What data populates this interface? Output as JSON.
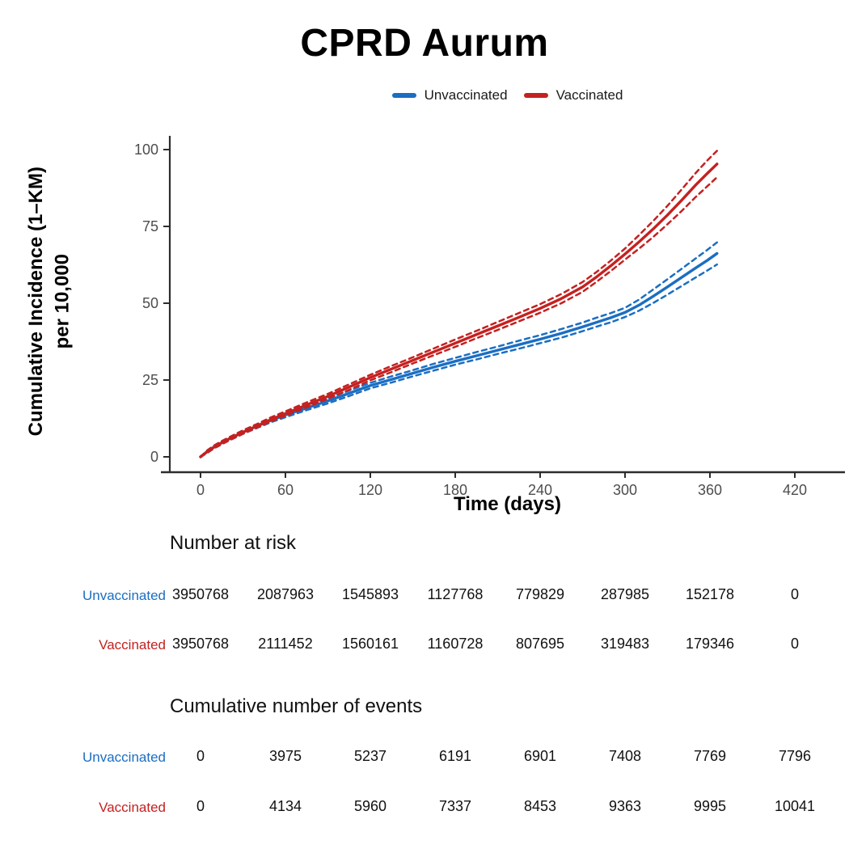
{
  "title": "CPRD Aurum",
  "legend": {
    "items": [
      {
        "label": "Unvaccinated",
        "color": "#1b6ec2"
      },
      {
        "label": "Vaccinated",
        "color": "#c42120"
      }
    ]
  },
  "axis": {
    "x_label": "Time (days)",
    "y_label_line1": "Cumulative Incidence (1–KM)",
    "y_label_line2": "per 10,000",
    "x_ticks": [
      0,
      60,
      120,
      180,
      240,
      300,
      360,
      420
    ],
    "y_ticks": [
      0,
      25,
      50,
      75,
      100
    ],
    "tick_color": "#4d4d4d",
    "axis_color": "#2d2d2d"
  },
  "chart_data": {
    "type": "line",
    "title": "CPRD Aurum",
    "xlabel": "Time (days)",
    "ylabel": "Cumulative Incidence (1–KM) per 10,000",
    "xlim": [
      0,
      440
    ],
    "ylim": [
      0,
      100
    ],
    "grid": false,
    "legend_position": "top",
    "x": [
      0,
      5,
      10,
      15,
      20,
      30,
      40,
      50,
      60,
      75,
      90,
      105,
      120,
      135,
      150,
      165,
      180,
      195,
      210,
      225,
      240,
      255,
      270,
      280,
      290,
      300,
      310,
      320,
      330,
      340,
      350,
      358,
      365
    ],
    "series": [
      {
        "name": "Unvaccinated",
        "color": "#1b6ec2",
        "values": [
          0,
          1.8,
          3.3,
          4.6,
          5.8,
          8.0,
          10.0,
          11.9,
          13.6,
          15.9,
          18.2,
          20.7,
          23.2,
          25.2,
          27.2,
          29.2,
          31.1,
          32.9,
          34.7,
          36.5,
          38.3,
          40.2,
          42.3,
          43.8,
          45.3,
          47.0,
          49.4,
          52.3,
          55.3,
          58.4,
          61.5,
          63.9,
          66.2
        ],
        "ci_upper": [
          0,
          2.2,
          3.8,
          5.1,
          6.3,
          8.6,
          10.6,
          12.6,
          14.3,
          16.7,
          19.0,
          21.6,
          24.1,
          26.2,
          28.2,
          30.3,
          32.2,
          34.1,
          35.9,
          37.8,
          39.6,
          41.6,
          43.7,
          45.3,
          46.8,
          48.5,
          51.2,
          54.5,
          57.8,
          61.2,
          64.6,
          67.3,
          69.8
        ],
        "ci_lower": [
          0,
          1.4,
          2.9,
          4.1,
          5.3,
          7.5,
          9.4,
          11.3,
          12.9,
          15.2,
          17.4,
          19.8,
          22.3,
          24.2,
          26.2,
          28.1,
          30.0,
          31.7,
          33.5,
          35.2,
          37.0,
          38.8,
          40.9,
          42.4,
          43.8,
          45.5,
          47.6,
          50.1,
          52.8,
          55.6,
          58.4,
          60.6,
          62.6
        ]
      },
      {
        "name": "Vaccinated",
        "color": "#c42120",
        "values": [
          0,
          1.8,
          3.3,
          4.6,
          5.8,
          8.0,
          10.1,
          12.2,
          14.1,
          16.9,
          19.7,
          22.7,
          25.8,
          28.6,
          31.4,
          34.2,
          37.0,
          39.8,
          42.6,
          45.4,
          48.3,
          51.5,
          55.3,
          58.6,
          62.2,
          66.0,
          70.0,
          74.2,
          78.7,
          83.5,
          88.5,
          92.2,
          95.3
        ],
        "ci_upper": [
          0,
          2.2,
          3.8,
          5.1,
          6.3,
          8.6,
          10.7,
          12.9,
          14.8,
          17.7,
          20.5,
          23.6,
          26.7,
          29.6,
          32.4,
          35.3,
          38.2,
          41.0,
          43.9,
          46.8,
          49.7,
          53.0,
          56.9,
          60.2,
          63.9,
          67.8,
          72.2,
          76.8,
          81.7,
          87.0,
          92.4,
          96.4,
          99.6
        ],
        "ci_lower": [
          0,
          1.4,
          2.9,
          4.1,
          5.3,
          7.5,
          9.5,
          11.6,
          13.4,
          16.1,
          18.9,
          21.8,
          24.9,
          27.6,
          30.4,
          33.1,
          35.8,
          38.6,
          41.3,
          44.1,
          46.9,
          50.0,
          53.7,
          57.0,
          60.5,
          64.2,
          67.8,
          71.6,
          75.7,
          80.0,
          84.6,
          88.0,
          91.0
        ]
      }
    ]
  },
  "tables": {
    "time_points": [
      0,
      60,
      120,
      180,
      240,
      300,
      360,
      420
    ],
    "number_at_risk": {
      "heading": "Number at risk",
      "rows": [
        {
          "label": "Unvaccinated",
          "color": "#1b6ec2",
          "values": [
            "3950768",
            "2087963",
            "1545893",
            "1127768",
            "779829",
            "287985",
            "152178",
            "0"
          ]
        },
        {
          "label": "Vaccinated",
          "color": "#c42120",
          "values": [
            "3950768",
            "2111452",
            "1560161",
            "1160728",
            "807695",
            "319483",
            "179346",
            "0"
          ]
        }
      ]
    },
    "cumulative_events": {
      "heading": "Cumulative number of events",
      "rows": [
        {
          "label": "Unvaccinated",
          "color": "#1b6ec2",
          "values": [
            "0",
            "3975",
            "5237",
            "6191",
            "6901",
            "7408",
            "7769",
            "7796"
          ]
        },
        {
          "label": "Vaccinated",
          "color": "#c42120",
          "values": [
            "0",
            "4134",
            "5960",
            "7337",
            "8453",
            "9363",
            "9995",
            "10041"
          ]
        }
      ]
    }
  }
}
